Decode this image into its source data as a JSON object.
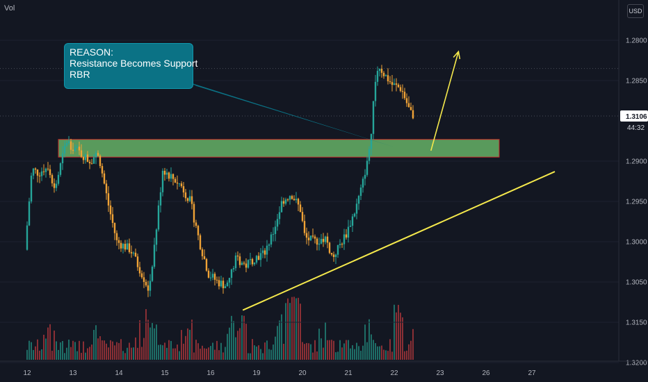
{
  "header": {
    "volume_label": "Vol",
    "currency_button": "USD"
  },
  "annotation": {
    "line1": "REASON:",
    "line2": "Resistance Becomes Support",
    "line3": "RBR"
  },
  "price_axis": {
    "ticks": [
      "1.3200",
      "1.3150",
      "1.3050",
      "1.3000",
      "1.2950",
      "1.2900",
      "1.2850",
      "1.2800"
    ],
    "current_price": "1.3106",
    "countdown": "44:32"
  },
  "time_axis": {
    "ticks": [
      "12",
      "13",
      "14",
      "15",
      "16",
      "19",
      "20",
      "21",
      "22",
      "23",
      "26",
      "27"
    ]
  },
  "colors": {
    "background": "#131722",
    "up": "#26a69a",
    "down": "#f0a336",
    "vol_up": "#1e6e67",
    "vol_down": "#8a2f35",
    "zone_fill": "#66b266",
    "zone_border": "#c62828",
    "trendline": "#f5e94c",
    "callout": "#0b7285",
    "price_tag": "#ffffff"
  },
  "chart_data": {
    "type": "candlestick",
    "x_ticks": [
      "12",
      "13",
      "14",
      "15",
      "16",
      "19",
      "20",
      "21",
      "22",
      "23",
      "26",
      "27"
    ],
    "ylim": [
      1.2785,
      1.3235
    ],
    "y_ticks": [
      1.28,
      1.285,
      1.29,
      1.295,
      1.3,
      1.305,
      1.315,
      1.32
    ],
    "price_path": [
      [
        0.0,
        1.294
      ],
      [
        0.15,
        1.304
      ],
      [
        0.3,
        1.3035
      ],
      [
        0.5,
        1.3045
      ],
      [
        0.65,
        1.3015
      ],
      [
        0.9,
        1.3075
      ],
      [
        1.0,
        1.307
      ],
      [
        1.2,
        1.306
      ],
      [
        1.4,
        1.305
      ],
      [
        1.6,
        1.306
      ],
      [
        1.8,
        1.3
      ],
      [
        2.0,
        1.295
      ],
      [
        2.3,
        1.294
      ],
      [
        2.55,
        1.291
      ],
      [
        2.7,
        1.289
      ],
      [
        2.85,
        1.296
      ],
      [
        3.0,
        1.304
      ],
      [
        3.2,
        1.303
      ],
      [
        3.4,
        1.302
      ],
      [
        3.6,
        1.3
      ],
      [
        3.8,
        1.295
      ],
      [
        4.0,
        1.291
      ],
      [
        4.2,
        1.29
      ],
      [
        4.4,
        1.2895
      ],
      [
        4.6,
        1.293
      ],
      [
        4.8,
        1.292
      ],
      [
        5.0,
        1.293
      ],
      [
        5.2,
        1.2935
      ],
      [
        5.4,
        1.296
      ],
      [
        5.6,
        1.3
      ],
      [
        5.8,
        1.301
      ],
      [
        6.0,
        1.299
      ],
      [
        6.1,
        1.2955
      ],
      [
        6.3,
        1.295
      ],
      [
        6.55,
        1.2955
      ],
      [
        6.7,
        1.293
      ],
      [
        6.85,
        1.2945
      ],
      [
        7.0,
        1.296
      ],
      [
        7.2,
        1.299
      ],
      [
        7.35,
        1.302
      ],
      [
        7.45,
        1.305
      ],
      [
        7.55,
        1.308
      ],
      [
        7.6,
        1.314
      ],
      [
        7.7,
        1.317
      ],
      [
        7.8,
        1.316
      ],
      [
        8.0,
        1.3145
      ],
      [
        8.2,
        1.314
      ],
      [
        8.4,
        1.311
      ],
      [
        8.45,
        1.3106
      ]
    ],
    "volume_range": [
      0,
      1
    ],
    "resistance_zone": {
      "from": 1.3055,
      "to": 1.3077
    },
    "trendline": {
      "from": [
        4.7,
        1.2865
      ],
      "to": [
        11.5,
        1.3037
      ]
    },
    "projection_arrow": {
      "from": [
        8.8,
        1.3063
      ],
      "to": [
        9.4,
        1.3186
      ]
    },
    "last_price": 1.3106,
    "reference_line": 1.3165
  }
}
